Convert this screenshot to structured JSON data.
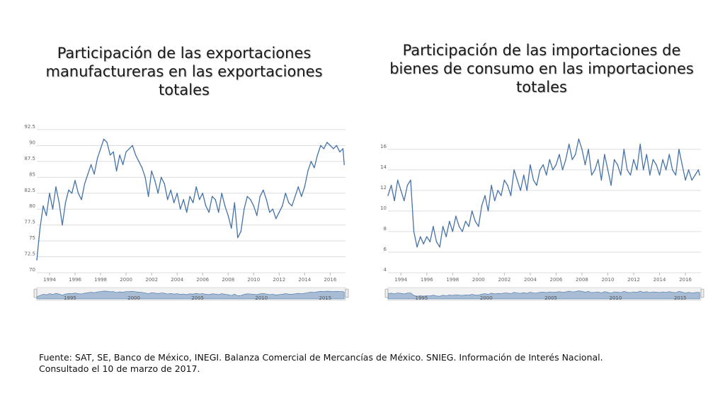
{
  "colors": {
    "line": "#4572a7",
    "grid": "#dddddd",
    "navigator_fill": "#a8bcd4"
  },
  "chart_data": [
    {
      "type": "line",
      "title": "Participación de las exportaciones manufactureras en las exportaciones totales",
      "xlabel": "",
      "ylabel": "",
      "xlim": [
        1993.0,
        2017.2
      ],
      "ylim": [
        70,
        92.5
      ],
      "y_ticks": [
        "92.5",
        "90",
        "87.5",
        "85",
        "82.5",
        "80",
        "77.5",
        "75",
        "72.5",
        "70"
      ],
      "x_ticks": [
        "1994",
        "1996",
        "1998",
        "2000",
        "2002",
        "2004",
        "2006",
        "2008",
        "2010",
        "2012",
        "2014",
        "2016"
      ],
      "navigator_ticks": [
        "1995",
        "2000",
        "2005",
        "2010",
        "2015"
      ],
      "series": [
        {
          "name": "Participación de las exportaciones manufactureras",
          "x": [
            1993.0,
            1993.25,
            1993.5,
            1993.75,
            1994.0,
            1994.25,
            1994.5,
            1994.75,
            1995.0,
            1995.25,
            1995.5,
            1995.75,
            1996.0,
            1996.25,
            1996.5,
            1996.75,
            1997.0,
            1997.25,
            1997.5,
            1997.75,
            1998.0,
            1998.25,
            1998.5,
            1998.75,
            1999.0,
            1999.25,
            1999.5,
            1999.75,
            2000.0,
            2000.25,
            2000.5,
            2000.75,
            2001.0,
            2001.25,
            2001.5,
            2001.75,
            2002.0,
            2002.25,
            2002.5,
            2002.75,
            2003.0,
            2003.25,
            2003.5,
            2003.75,
            2004.0,
            2004.25,
            2004.5,
            2004.75,
            2005.0,
            2005.25,
            2005.5,
            2005.75,
            2006.0,
            2006.25,
            2006.5,
            2006.75,
            2007.0,
            2007.25,
            2007.5,
            2007.75,
            2008.0,
            2008.25,
            2008.5,
            2008.75,
            2009.0,
            2009.25,
            2009.5,
            2009.75,
            2010.0,
            2010.25,
            2010.5,
            2010.75,
            2011.0,
            2011.25,
            2011.5,
            2011.75,
            2012.0,
            2012.25,
            2012.5,
            2012.75,
            2013.0,
            2013.25,
            2013.5,
            2013.75,
            2014.0,
            2014.25,
            2014.5,
            2014.75,
            2015.0,
            2015.25,
            2015.5,
            2015.75,
            2016.0,
            2016.25,
            2016.5,
            2016.75,
            2017.0,
            2017.1
          ],
          "values": [
            72.0,
            77.0,
            80.5,
            79.0,
            82.5,
            80.0,
            83.5,
            81.0,
            77.5,
            81.0,
            83.0,
            82.5,
            84.5,
            82.5,
            81.5,
            84.0,
            85.5,
            87.0,
            85.5,
            88.0,
            89.5,
            91.0,
            90.5,
            88.5,
            89.0,
            86.0,
            88.5,
            87.0,
            89.0,
            89.5,
            90.0,
            88.5,
            87.5,
            86.5,
            85.0,
            82.0,
            86.0,
            84.5,
            82.5,
            85.0,
            84.0,
            81.5,
            83.0,
            81.0,
            82.5,
            80.0,
            81.5,
            79.5,
            82.0,
            81.0,
            83.5,
            81.5,
            82.5,
            80.5,
            79.5,
            82.0,
            81.5,
            79.5,
            82.5,
            80.5,
            79.0,
            77.0,
            81.0,
            75.5,
            76.5,
            80.0,
            82.0,
            81.5,
            80.5,
            79.0,
            82.0,
            83.0,
            81.5,
            79.5,
            80.0,
            78.5,
            79.5,
            80.5,
            82.5,
            81.0,
            80.5,
            82.0,
            83.5,
            82.0,
            83.5,
            86.0,
            87.5,
            86.5,
            88.5,
            90.0,
            89.5,
            90.5,
            90.0,
            89.5,
            90.0,
            89.0,
            89.5,
            87.0
          ]
        }
      ]
    },
    {
      "type": "line",
      "title": "Participación de las importaciones de bienes de consumo en las importaciones totales",
      "xlabel": "",
      "ylabel": "",
      "xlim": [
        1993.0,
        2017.2
      ],
      "ylim": [
        4,
        17.5
      ],
      "y_ticks": [
        "16",
        "14",
        "12",
        "10",
        "8",
        "6",
        "4"
      ],
      "x_ticks": [
        "1994",
        "1996",
        "1998",
        "2000",
        "2002",
        "2004",
        "2006",
        "2008",
        "2010",
        "2012",
        "2014",
        "2016"
      ],
      "navigator_ticks": [
        "1995",
        "2000",
        "2005",
        "2010",
        "2015"
      ],
      "series": [
        {
          "name": "Participación de las importaciones de bienes de consumo",
          "x": [
            1993.0,
            1993.25,
            1993.5,
            1993.75,
            1994.0,
            1994.25,
            1994.5,
            1994.75,
            1995.0,
            1995.25,
            1995.5,
            1995.75,
            1996.0,
            1996.25,
            1996.5,
            1996.75,
            1997.0,
            1997.25,
            1997.5,
            1997.75,
            1998.0,
            1998.25,
            1998.5,
            1998.75,
            1999.0,
            1999.25,
            1999.5,
            1999.75,
            2000.0,
            2000.25,
            2000.5,
            2000.75,
            2001.0,
            2001.25,
            2001.5,
            2001.75,
            2002.0,
            2002.25,
            2002.5,
            2002.75,
            2003.0,
            2003.25,
            2003.5,
            2003.75,
            2004.0,
            2004.25,
            2004.5,
            2004.75,
            2005.0,
            2005.25,
            2005.5,
            2005.75,
            2006.0,
            2006.25,
            2006.5,
            2006.75,
            2007.0,
            2007.25,
            2007.5,
            2007.75,
            2008.0,
            2008.25,
            2008.5,
            2008.75,
            2009.0,
            2009.25,
            2009.5,
            2009.75,
            2010.0,
            2010.25,
            2010.5,
            2010.75,
            2011.0,
            2011.25,
            2011.5,
            2011.75,
            2012.0,
            2012.25,
            2012.5,
            2012.75,
            2013.0,
            2013.25,
            2013.5,
            2013.75,
            2014.0,
            2014.25,
            2014.5,
            2014.75,
            2015.0,
            2015.25,
            2015.5,
            2015.75,
            2016.0,
            2016.25,
            2016.5,
            2016.75,
            2017.0,
            2017.1
          ],
          "values": [
            11.5,
            12.5,
            11.0,
            13.0,
            12.0,
            11.0,
            12.5,
            13.0,
            8.0,
            6.5,
            7.5,
            6.8,
            7.5,
            7.0,
            8.5,
            7.0,
            6.5,
            8.5,
            7.5,
            9.0,
            8.0,
            9.5,
            8.5,
            8.0,
            9.0,
            8.5,
            10.0,
            9.0,
            8.5,
            10.5,
            11.5,
            10.0,
            12.5,
            11.0,
            12.0,
            11.5,
            13.0,
            12.5,
            11.5,
            14.0,
            13.0,
            12.0,
            13.5,
            12.0,
            14.5,
            13.0,
            12.5,
            14.0,
            14.5,
            13.5,
            15.0,
            14.0,
            14.5,
            15.5,
            14.0,
            15.0,
            16.5,
            15.0,
            15.5,
            17.0,
            16.0,
            14.5,
            16.0,
            13.5,
            14.0,
            15.0,
            13.0,
            15.5,
            14.0,
            12.5,
            15.0,
            14.5,
            13.5,
            16.0,
            14.0,
            13.5,
            15.0,
            14.0,
            16.5,
            14.0,
            15.5,
            13.5,
            15.0,
            14.5,
            13.5,
            15.0,
            14.0,
            15.5,
            14.0,
            13.5,
            16.0,
            14.5,
            13.0,
            14.0,
            13.0,
            13.5,
            14.0,
            13.5
          ]
        }
      ]
    }
  ],
  "footer": {
    "line1": "Fuente: SAT, SE, Banco de México, INEGI. Balanza Comercial de Mercancías de México. SNIEG. Información de Interés Nacional.",
    "line2": "Consultado el 10 de marzo de 2017."
  }
}
